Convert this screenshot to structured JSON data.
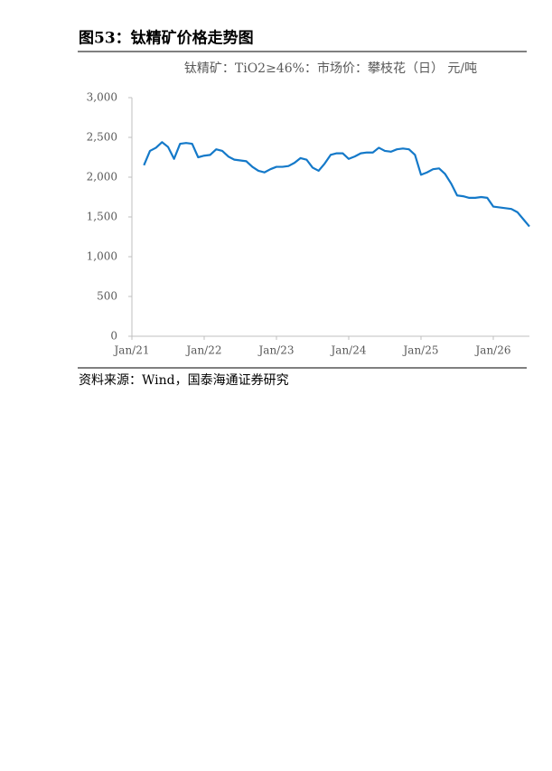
{
  "figure_title": "图53：钛精矿价格走势图",
  "chart_data": {
    "type": "line",
    "title": "钛精矿：TiO2≥46%：市场价：攀枝花（日） 元/吨",
    "categories": [
      "Jan/21",
      null,
      null,
      null,
      null,
      null,
      null,
      null,
      null,
      null,
      null,
      null,
      "Jan/22",
      null,
      null,
      null,
      null,
      null,
      null,
      null,
      null,
      null,
      null,
      null,
      "Jan/23",
      null,
      null,
      null,
      null,
      null,
      null,
      null,
      null,
      null,
      null,
      null,
      "Jan/24",
      null,
      null,
      null,
      null,
      null,
      null,
      null,
      null,
      null,
      null,
      null,
      "Jan/25",
      null,
      null,
      null,
      null,
      null,
      null,
      null,
      null,
      null,
      null,
      null,
      "Jan/26",
      null,
      null,
      null,
      null,
      null,
      null
    ],
    "series": [
      {
        "color": "#1479c9",
        "values": [
          null,
          null,
          2150,
          2330,
          2370,
          2440,
          2380,
          2230,
          2420,
          2430,
          2420,
          2250,
          2270,
          2280,
          2350,
          2330,
          2260,
          2220,
          2210,
          2200,
          2130,
          2080,
          2060,
          2100,
          2130,
          2130,
          2140,
          2180,
          2240,
          2220,
          2120,
          2080,
          2170,
          2280,
          2300,
          2300,
          2230,
          2260,
          2300,
          2310,
          2310,
          2370,
          2330,
          2320,
          2350,
          2360,
          2350,
          2280,
          2030,
          2060,
          2100,
          2110,
          2040,
          1920,
          1770,
          1760,
          1740,
          1740,
          1750,
          1740,
          1630,
          1620,
          1610,
          1600,
          1560,
          1470,
          1380
        ]
      }
    ],
    "ylim": [
      0,
      3000
    ],
    "yticks": [
      0,
      500,
      {
        "value": 1000,
        "label": "1,000"
      },
      {
        "value": 1500,
        "label": "1,500"
      },
      {
        "value": 2000,
        "label": "2,000"
      },
      {
        "value": 2500,
        "label": "2,500"
      },
      {
        "value": 3000,
        "label": "3,000"
      }
    ]
  },
  "source": "资料来源：Wind，国泰海通证券研究"
}
